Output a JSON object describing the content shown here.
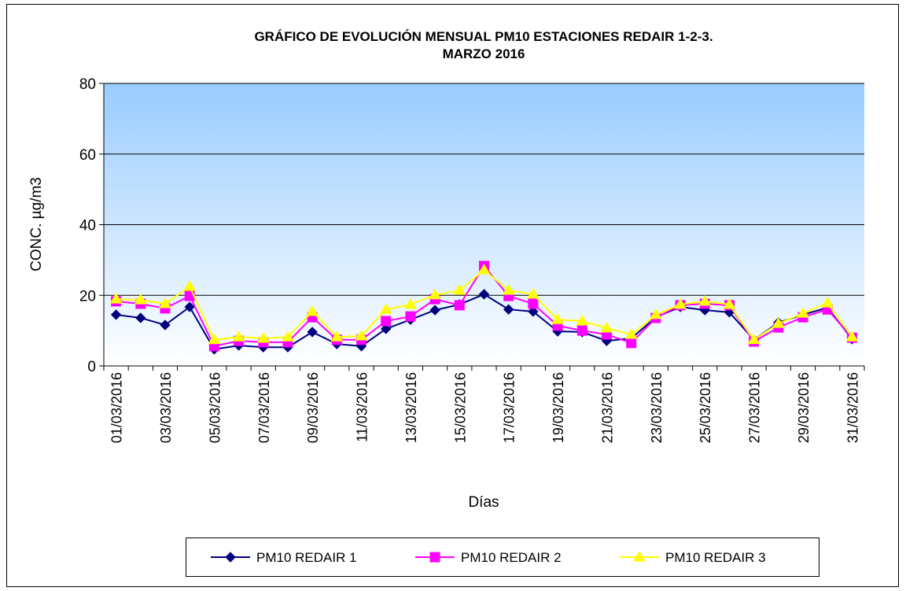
{
  "chart_data": {
    "type": "line",
    "title": "GRÁFICO DE EVOLUCIÓN MENSUAL PM10 ESTACIONES REDAIR 1-2-3.",
    "subtitle": "MARZO 2016",
    "x_label": "Días",
    "y_label": "CONC.  µg/m3",
    "categories": [
      "01/03/2016",
      null,
      "03/03/2016",
      null,
      "05/03/2016",
      null,
      "07/03/2016",
      null,
      "09/03/2016",
      null,
      "11/03/2016",
      null,
      "13/03/2016",
      null,
      "15/03/2016",
      null,
      "17/03/2016",
      null,
      "19/03/2016",
      null,
      "21/03/2016",
      null,
      "23/03/2016",
      null,
      "25/03/2016",
      null,
      "27/03/2016",
      null,
      "29/03/2016",
      null,
      "31/03/2016"
    ],
    "ylim": [
      0,
      80
    ],
    "yticks": [
      0,
      20,
      40,
      60,
      80
    ],
    "grid": true,
    "legend": "bottom",
    "series": [
      {
        "name": "PM10 REDAIR 1",
        "color": "#000080",
        "marker": "diamond",
        "values": [
          14.5,
          13.6,
          11.6,
          16.7,
          4.7,
          5.8,
          5.3,
          5.3,
          9.6,
          6.2,
          5.6,
          10.5,
          13.1,
          15.8,
          17.4,
          20.3,
          16.0,
          15.4,
          9.8,
          9.6,
          7.1,
          7.8,
          13.8,
          16.7,
          15.8,
          15.2,
          7.4,
          12.3,
          14.5,
          16.5,
          7.6
        ]
      },
      {
        "name": "PM10 REDAIR 2",
        "color": "#FF00FF",
        "marker": "square",
        "values": [
          18.3,
          17.6,
          16.3,
          19.8,
          5.6,
          7.1,
          6.7,
          6.7,
          13.8,
          7.4,
          7.4,
          12.7,
          14.0,
          18.9,
          17.2,
          28.3,
          19.8,
          17.6,
          11.4,
          10.0,
          8.9,
          6.5,
          13.6,
          17.2,
          17.6,
          17.2,
          6.9,
          10.9,
          13.8,
          16.0,
          8.0
        ]
      },
      {
        "name": "PM10 REDAIR 3",
        "color": "#FFFF00",
        "marker": "triangle",
        "values": [
          18.9,
          18.7,
          17.6,
          22.5,
          7.4,
          8.2,
          7.8,
          8.2,
          15.4,
          8.2,
          8.5,
          16.0,
          17.4,
          20.1,
          21.4,
          27.2,
          21.4,
          20.3,
          13.1,
          12.7,
          10.7,
          8.9,
          14.5,
          17.4,
          18.3,
          17.4,
          7.4,
          12.0,
          14.9,
          17.8,
          8.2
        ]
      }
    ]
  }
}
